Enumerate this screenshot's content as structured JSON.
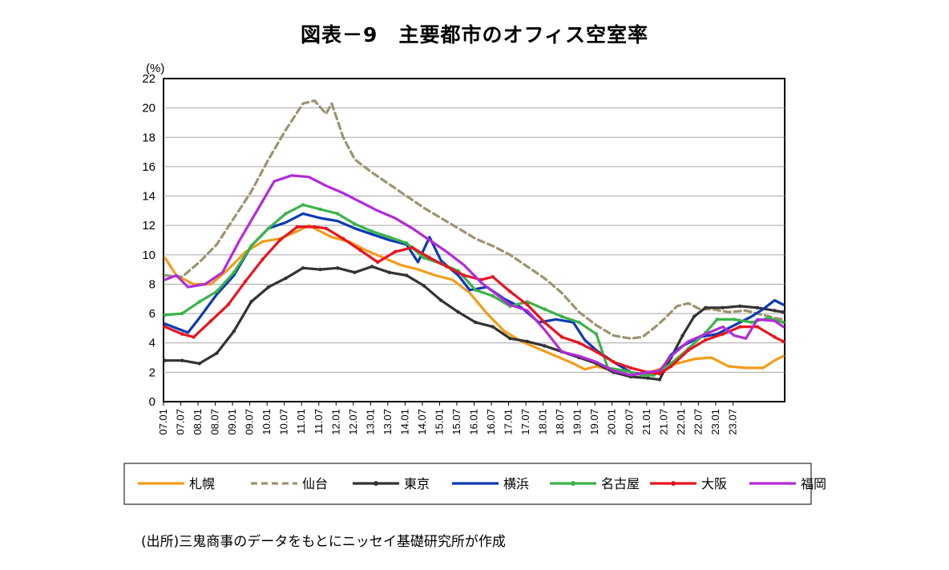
{
  "chart_data": {
    "type": "line",
    "title": "図表－9　主要都市のオフィス空室率",
    "ylabel": "(%)",
    "xlabel": "",
    "ylim": [
      0,
      22
    ],
    "yticks": [
      0,
      2,
      4,
      6,
      8,
      10,
      12,
      14,
      16,
      18,
      20,
      22
    ],
    "x_start": "07.01",
    "x_end": "23.12",
    "xtick_labels": [
      "07.01",
      "07.07",
      "08.01",
      "08.07",
      "09.01",
      "09.07",
      "10.01",
      "10.07",
      "11.01",
      "11.07",
      "12.01",
      "12.07",
      "13.01",
      "13.07",
      "14.01",
      "14.07",
      "15.01",
      "15.07",
      "16.01",
      "16.07",
      "17.01",
      "17.07",
      "18.01",
      "18.07",
      "19.01",
      "19.07",
      "20.01",
      "20.07",
      "21.01",
      "21.07",
      "22.01",
      "22.07",
      "23.01",
      "23.07"
    ],
    "grid": "horizontal",
    "legend_position": "bottom",
    "series": [
      {
        "name": "札幌",
        "color": "#f39c1b",
        "dash": "solid",
        "marker": "none",
        "points": [
          [
            0,
            9.8
          ],
          [
            4,
            8.6
          ],
          [
            10,
            8.0
          ],
          [
            16,
            8.0
          ],
          [
            22,
            9.0
          ],
          [
            28,
            10.2
          ],
          [
            34,
            10.9
          ],
          [
            40,
            11.1
          ],
          [
            46,
            11.6
          ],
          [
            50,
            12.0
          ],
          [
            54,
            11.6
          ],
          [
            58,
            11.2
          ],
          [
            64,
            10.9
          ],
          [
            70,
            10.3
          ],
          [
            76,
            9.8
          ],
          [
            82,
            9.3
          ],
          [
            88,
            9.0
          ],
          [
            94,
            8.6
          ],
          [
            100,
            8.3
          ],
          [
            106,
            7.4
          ],
          [
            112,
            6.0
          ],
          [
            118,
            4.8
          ],
          [
            124,
            4.1
          ],
          [
            130,
            3.6
          ],
          [
            136,
            3.1
          ],
          [
            142,
            2.6
          ],
          [
            146,
            2.2
          ],
          [
            150,
            2.4
          ],
          [
            156,
            2.1
          ],
          [
            160,
            1.8
          ],
          [
            166,
            1.9
          ],
          [
            172,
            2.2
          ],
          [
            178,
            2.6
          ],
          [
            184,
            2.9
          ],
          [
            190,
            3.0
          ],
          [
            196,
            2.4
          ],
          [
            202,
            2.3
          ],
          [
            208,
            2.3
          ],
          [
            212,
            2.8
          ],
          [
            215,
            3.1
          ]
        ]
      },
      {
        "name": "仙台",
        "color": "#9c9470",
        "dash": "dashed",
        "marker": "none",
        "points": [
          [
            0,
            8.6
          ],
          [
            6,
            8.5
          ],
          [
            12,
            9.5
          ],
          [
            18,
            10.7
          ],
          [
            24,
            12.5
          ],
          [
            30,
            14.3
          ],
          [
            36,
            16.5
          ],
          [
            42,
            18.5
          ],
          [
            48,
            20.3
          ],
          [
            52,
            20.5
          ],
          [
            56,
            19.6
          ],
          [
            58,
            20.3
          ],
          [
            62,
            18.0
          ],
          [
            66,
            16.5
          ],
          [
            72,
            15.6
          ],
          [
            78,
            14.8
          ],
          [
            84,
            14.0
          ],
          [
            90,
            13.2
          ],
          [
            96,
            12.5
          ],
          [
            102,
            11.8
          ],
          [
            108,
            11.1
          ],
          [
            114,
            10.6
          ],
          [
            120,
            10.0
          ],
          [
            126,
            9.2
          ],
          [
            132,
            8.4
          ],
          [
            138,
            7.4
          ],
          [
            144,
            6.1
          ],
          [
            150,
            5.2
          ],
          [
            156,
            4.5
          ],
          [
            162,
            4.3
          ],
          [
            166,
            4.4
          ],
          [
            170,
            5.0
          ],
          [
            174,
            5.7
          ],
          [
            178,
            6.5
          ],
          [
            182,
            6.7
          ],
          [
            186,
            6.3
          ],
          [
            190,
            6.3
          ],
          [
            196,
            6.1
          ],
          [
            202,
            6.2
          ],
          [
            208,
            5.9
          ],
          [
            212,
            5.7
          ],
          [
            215,
            5.6
          ]
        ]
      },
      {
        "name": "東京",
        "color": "#333333",
        "dash": "solid",
        "marker": "dot",
        "points": [
          [
            0,
            2.8
          ],
          [
            6,
            2.8
          ],
          [
            12,
            2.6
          ],
          [
            18,
            3.3
          ],
          [
            24,
            4.8
          ],
          [
            30,
            6.8
          ],
          [
            36,
            7.8
          ],
          [
            42,
            8.4
          ],
          [
            48,
            9.1
          ],
          [
            54,
            9.0
          ],
          [
            60,
            9.1
          ],
          [
            66,
            8.8
          ],
          [
            72,
            9.2
          ],
          [
            78,
            8.8
          ],
          [
            84,
            8.6
          ],
          [
            90,
            7.9
          ],
          [
            96,
            6.9
          ],
          [
            102,
            6.1
          ],
          [
            108,
            5.4
          ],
          [
            114,
            5.1
          ],
          [
            120,
            4.3
          ],
          [
            126,
            4.1
          ],
          [
            132,
            3.8
          ],
          [
            138,
            3.4
          ],
          [
            144,
            3.0
          ],
          [
            150,
            2.6
          ],
          [
            156,
            2.0
          ],
          [
            162,
            1.7
          ],
          [
            168,
            1.6
          ],
          [
            172,
            1.5
          ],
          [
            176,
            3.0
          ],
          [
            180,
            4.5
          ],
          [
            184,
            5.8
          ],
          [
            188,
            6.4
          ],
          [
            194,
            6.4
          ],
          [
            200,
            6.5
          ],
          [
            206,
            6.4
          ],
          [
            212,
            6.2
          ],
          [
            215,
            6.1
          ]
        ]
      },
      {
        "name": "横浜",
        "color": "#0b39b5",
        "dash": "solid",
        "marker": "none",
        "points": [
          [
            0,
            5.3
          ],
          [
            4,
            5.0
          ],
          [
            8,
            4.7
          ],
          [
            12,
            5.7
          ],
          [
            18,
            7.3
          ],
          [
            24,
            8.6
          ],
          [
            30,
            10.6
          ],
          [
            36,
            11.8
          ],
          [
            42,
            12.2
          ],
          [
            48,
            12.8
          ],
          [
            54,
            12.5
          ],
          [
            60,
            12.3
          ],
          [
            66,
            11.8
          ],
          [
            72,
            11.4
          ],
          [
            78,
            11.0
          ],
          [
            84,
            10.7
          ],
          [
            88,
            9.5
          ],
          [
            92,
            11.2
          ],
          [
            96,
            9.6
          ],
          [
            102,
            8.6
          ],
          [
            106,
            7.6
          ],
          [
            112,
            7.8
          ],
          [
            118,
            7.0
          ],
          [
            124,
            6.4
          ],
          [
            130,
            5.4
          ],
          [
            136,
            5.6
          ],
          [
            142,
            5.4
          ],
          [
            146,
            4.2
          ],
          [
            150,
            3.5
          ],
          [
            156,
            2.7
          ],
          [
            162,
            2.0
          ],
          [
            168,
            1.8
          ],
          [
            172,
            2.0
          ],
          [
            176,
            3.2
          ],
          [
            180,
            3.8
          ],
          [
            186,
            4.4
          ],
          [
            192,
            4.6
          ],
          [
            198,
            5.2
          ],
          [
            204,
            5.8
          ],
          [
            208,
            6.3
          ],
          [
            212,
            6.9
          ],
          [
            215,
            6.6
          ]
        ]
      },
      {
        "name": "名古屋",
        "color": "#3bb34a",
        "dash": "solid",
        "marker": "dot",
        "points": [
          [
            0,
            5.9
          ],
          [
            6,
            6.0
          ],
          [
            12,
            6.8
          ],
          [
            18,
            7.5
          ],
          [
            24,
            8.8
          ],
          [
            30,
            10.6
          ],
          [
            36,
            11.8
          ],
          [
            42,
            12.8
          ],
          [
            48,
            13.4
          ],
          [
            54,
            13.1
          ],
          [
            60,
            12.8
          ],
          [
            66,
            12.1
          ],
          [
            72,
            11.6
          ],
          [
            78,
            11.2
          ],
          [
            84,
            10.8
          ],
          [
            90,
            9.8
          ],
          [
            96,
            9.4
          ],
          [
            102,
            8.9
          ],
          [
            108,
            7.6
          ],
          [
            114,
            7.2
          ],
          [
            120,
            6.5
          ],
          [
            126,
            6.8
          ],
          [
            132,
            6.3
          ],
          [
            138,
            5.8
          ],
          [
            144,
            5.4
          ],
          [
            150,
            4.6
          ],
          [
            154,
            2.3
          ],
          [
            160,
            2.1
          ],
          [
            166,
            1.8
          ],
          [
            170,
            1.8
          ],
          [
            176,
            2.6
          ],
          [
            182,
            3.6
          ],
          [
            188,
            4.7
          ],
          [
            192,
            5.6
          ],
          [
            198,
            5.6
          ],
          [
            204,
            5.4
          ],
          [
            210,
            5.7
          ],
          [
            215,
            5.4
          ]
        ]
      },
      {
        "name": "大阪",
        "color": "#e8151f",
        "dash": "solid",
        "marker": "dot",
        "points": [
          [
            0,
            5.1
          ],
          [
            6,
            4.6
          ],
          [
            10,
            4.4
          ],
          [
            16,
            5.5
          ],
          [
            22,
            6.6
          ],
          [
            28,
            8.2
          ],
          [
            34,
            9.7
          ],
          [
            40,
            11.0
          ],
          [
            46,
            11.9
          ],
          [
            52,
            11.9
          ],
          [
            56,
            11.8
          ],
          [
            62,
            11.1
          ],
          [
            68,
            10.3
          ],
          [
            74,
            9.5
          ],
          [
            80,
            10.2
          ],
          [
            86,
            10.5
          ],
          [
            92,
            9.8
          ],
          [
            98,
            9.2
          ],
          [
            104,
            8.6
          ],
          [
            110,
            8.3
          ],
          [
            114,
            8.5
          ],
          [
            120,
            7.5
          ],
          [
            126,
            6.6
          ],
          [
            132,
            5.4
          ],
          [
            138,
            4.4
          ],
          [
            144,
            4.0
          ],
          [
            150,
            3.4
          ],
          [
            156,
            2.7
          ],
          [
            162,
            2.3
          ],
          [
            168,
            2.0
          ],
          [
            172,
            1.9
          ],
          [
            176,
            2.4
          ],
          [
            182,
            3.5
          ],
          [
            188,
            4.2
          ],
          [
            194,
            4.6
          ],
          [
            200,
            5.1
          ],
          [
            206,
            5.1
          ],
          [
            212,
            4.4
          ],
          [
            215,
            4.1
          ]
        ]
      },
      {
        "name": "福岡",
        "color": "#b32ad9",
        "dash": "solid",
        "marker": "none",
        "points": [
          [
            0,
            8.3
          ],
          [
            4,
            8.6
          ],
          [
            8,
            7.8
          ],
          [
            14,
            8.0
          ],
          [
            20,
            8.8
          ],
          [
            26,
            11.0
          ],
          [
            32,
            13.0
          ],
          [
            38,
            15.0
          ],
          [
            44,
            15.4
          ],
          [
            50,
            15.3
          ],
          [
            56,
            14.7
          ],
          [
            62,
            14.2
          ],
          [
            68,
            13.6
          ],
          [
            74,
            13.0
          ],
          [
            80,
            12.5
          ],
          [
            86,
            11.8
          ],
          [
            92,
            11.0
          ],
          [
            98,
            10.2
          ],
          [
            104,
            9.3
          ],
          [
            110,
            8.1
          ],
          [
            116,
            7.2
          ],
          [
            120,
            6.6
          ],
          [
            126,
            6.2
          ],
          [
            132,
            4.9
          ],
          [
            138,
            3.4
          ],
          [
            144,
            3.1
          ],
          [
            150,
            2.7
          ],
          [
            156,
            2.1
          ],
          [
            162,
            1.8
          ],
          [
            168,
            2.0
          ],
          [
            172,
            2.1
          ],
          [
            176,
            3.1
          ],
          [
            182,
            4.1
          ],
          [
            188,
            4.6
          ],
          [
            194,
            5.1
          ],
          [
            198,
            4.5
          ],
          [
            202,
            4.3
          ],
          [
            206,
            5.6
          ],
          [
            212,
            5.5
          ],
          [
            215,
            5.1
          ]
        ]
      }
    ]
  },
  "source": "(出所)三鬼商事のデータをもとにニッセイ基礎研究所が作成"
}
